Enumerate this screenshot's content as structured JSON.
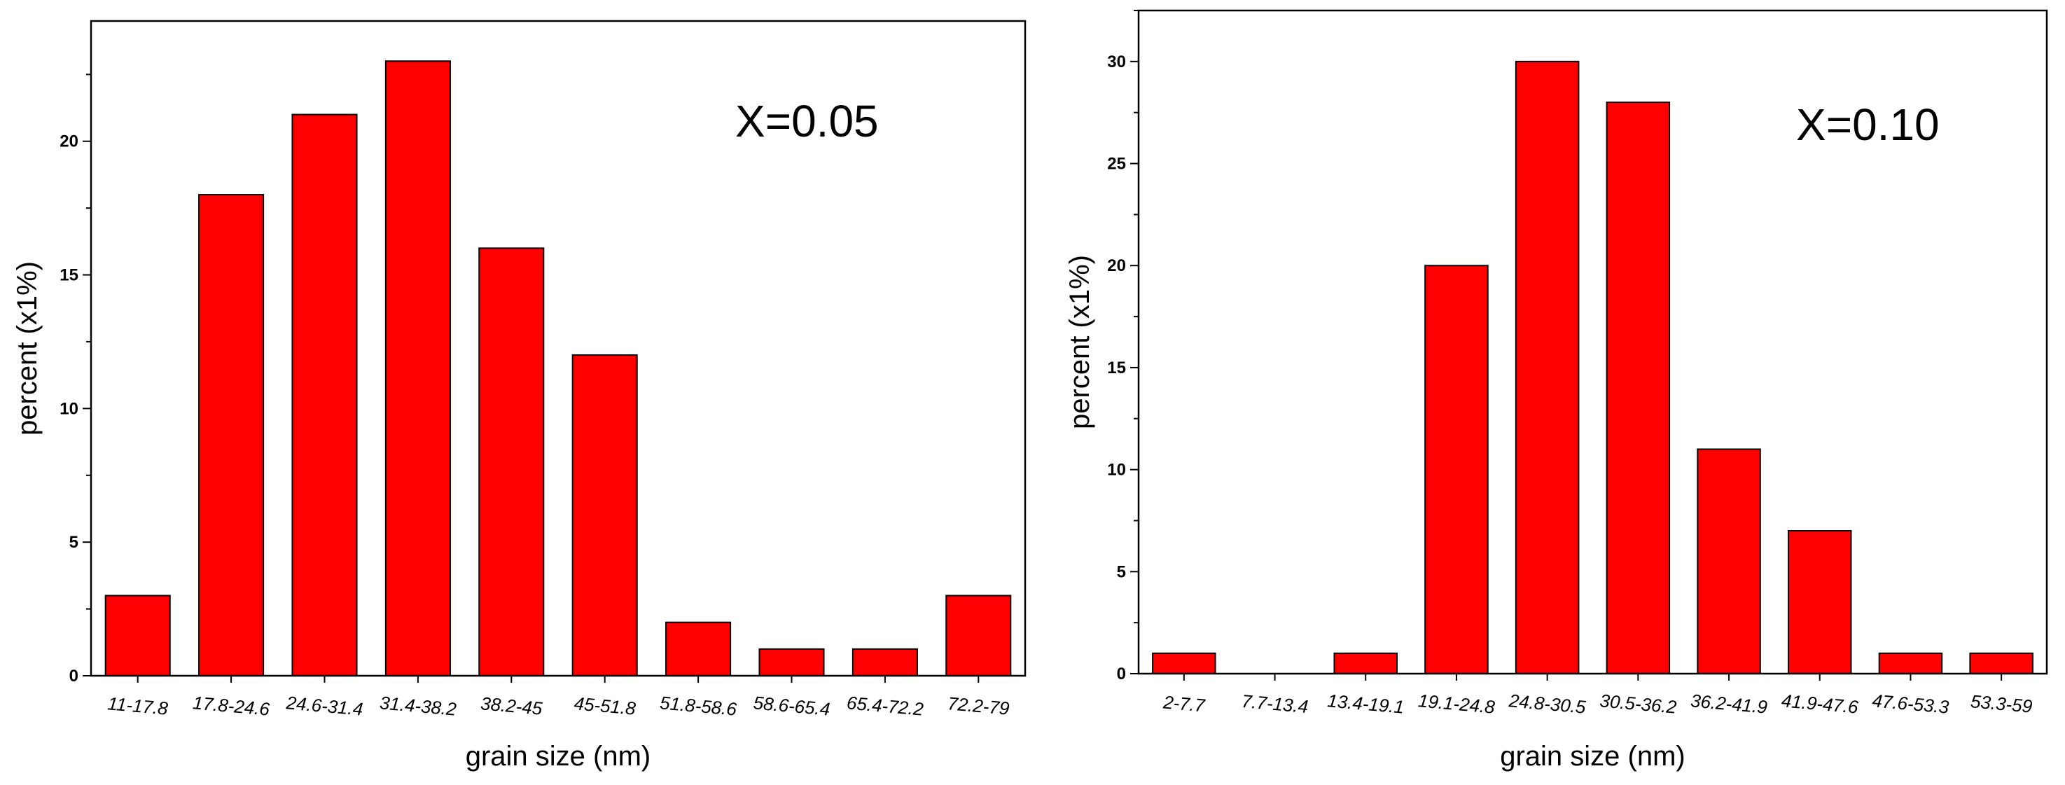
{
  "chart_data": [
    {
      "type": "bar",
      "annotation": "X=0.05",
      "xlabel": "grain size (nm)",
      "ylabel": "percent  (x1%)",
      "ylim": [
        0,
        24.5
      ],
      "yticks": [
        0,
        5,
        10,
        15,
        20
      ],
      "categories": [
        "11-17.8",
        "17.8-24.6",
        "24.6-31.4",
        "31.4-38.2",
        "38.2-45",
        "45-51.8",
        "51.8-58.6",
        "58.6-65.4",
        "65.4-72.2",
        "72.2-79"
      ],
      "values": [
        3,
        18,
        21,
        23,
        16,
        12,
        2,
        1,
        1,
        3
      ],
      "bar_color": "#ff0000",
      "grid": false
    },
    {
      "type": "bar",
      "annotation": "X=0.10",
      "xlabel": "grain size (nm)",
      "ylabel": "percent  (x1%)",
      "ylim": [
        0,
        32.5
      ],
      "yticks": [
        0,
        5,
        10,
        15,
        20,
        25,
        30
      ],
      "categories": [
        "2-7.7",
        "7.7-13.4",
        "13.4-19.1",
        "19.1-24.8",
        "24.8-30.5",
        "30.5-36.2",
        "36.2-41.9",
        "41.9-47.6",
        "47.6-53.3",
        "53.3-59"
      ],
      "values": [
        1,
        0,
        1,
        20,
        30,
        28,
        11,
        7,
        1,
        1
      ],
      "bar_color": "#ff0000",
      "grid": false
    }
  ]
}
